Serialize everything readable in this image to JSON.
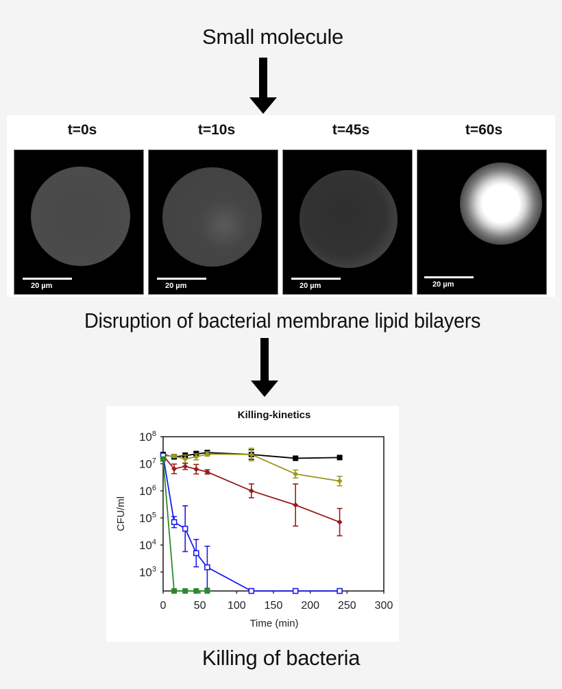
{
  "captions": {
    "top": "Small molecule",
    "middle": "Disruption of bacterial membrane lipid bilayers",
    "bottom": "Killing of bacteria"
  },
  "arrows": [
    {
      "name": "arrow-down-1",
      "icon": "down-arrow-icon"
    },
    {
      "name": "arrow-down-2",
      "icon": "down-arrow-icon"
    }
  ],
  "microscopy": {
    "frames": [
      {
        "label": "t=0s",
        "scale_bar": "20 µm",
        "state": "intact vesicle with bright rim"
      },
      {
        "label": "t=10s",
        "scale_bar": "20 µm",
        "state": "vesicle with dim interior speckles"
      },
      {
        "label": "t=45s",
        "scale_bar": "20 µm",
        "state": "granular vesicle, disrupted membrane"
      },
      {
        "label": "t=60s",
        "scale_bar": "20 µm",
        "state": "bright collapsed blob"
      }
    ]
  },
  "chart_data": {
    "type": "line",
    "title": "Killing-kinetics",
    "xlabel": "Time (min)",
    "ylabel": "CFU/ml",
    "xlim": [
      0,
      300
    ],
    "xticks": [
      0,
      50,
      100,
      150,
      200,
      250,
      300
    ],
    "yscale": "log",
    "ylim": [
      200,
      100000000
    ],
    "yticks": [
      1000,
      10000,
      100000,
      1000000,
      10000000,
      100000000
    ],
    "ytick_labels": [
      "10^3",
      "10^4",
      "10^5",
      "10^6",
      "10^7",
      "10^8"
    ],
    "grid": false,
    "legend": null,
    "series": [
      {
        "name": "black",
        "color": "#000000",
        "marker": "filled-square",
        "x": [
          0,
          15,
          30,
          45,
          60,
          120,
          180,
          240
        ],
        "y": [
          22000000,
          18000000,
          20000000,
          23000000,
          26000000,
          22000000,
          16000000,
          17000000
        ],
        "err_factor": [
          1.2,
          1.2,
          1.25,
          1.25,
          1.2,
          1.5,
          1.15,
          1.1
        ]
      },
      {
        "name": "olive",
        "color": "#9a9a1e",
        "marker": "filled-diamond",
        "x": [
          0,
          15,
          30,
          45,
          60,
          120,
          180,
          240
        ],
        "y": [
          20000000,
          19000000,
          15000000,
          18000000,
          23000000,
          22000000,
          4200000,
          2300000
        ],
        "err_factor": [
          1.1,
          1.1,
          1.4,
          1.3,
          1.2,
          1.7,
          1.4,
          1.5
        ]
      },
      {
        "name": "red",
        "color": "#9b1b1b",
        "marker": "filled-diamond",
        "x": [
          0,
          15,
          30,
          45,
          60,
          120,
          180,
          240
        ],
        "y": [
          20000000,
          6500000,
          8000000,
          6300000,
          5000000,
          1000000,
          300000,
          70000
        ],
        "err_factor": [
          1.1,
          1.5,
          1.3,
          1.5,
          1.2,
          1.8,
          6.0,
          3.2
        ]
      },
      {
        "name": "blue",
        "color": "#1a1aee",
        "marker": "open-square",
        "x": [
          0,
          15,
          30,
          45,
          60,
          120,
          180,
          240
        ],
        "y": [
          20000000,
          70000,
          40000,
          5000,
          1500,
          200,
          200,
          200
        ],
        "err_factor": [
          1.1,
          1.6,
          7.0,
          3.2,
          6.0,
          1,
          1,
          1
        ]
      },
      {
        "name": "green",
        "color": "#2a8a2a",
        "marker": "filled-square",
        "x": [
          0,
          15,
          30,
          45,
          60
        ],
        "y": [
          15000000,
          200,
          200,
          200,
          200
        ],
        "err_factor": [
          1,
          1,
          1,
          1,
          1
        ]
      }
    ]
  }
}
